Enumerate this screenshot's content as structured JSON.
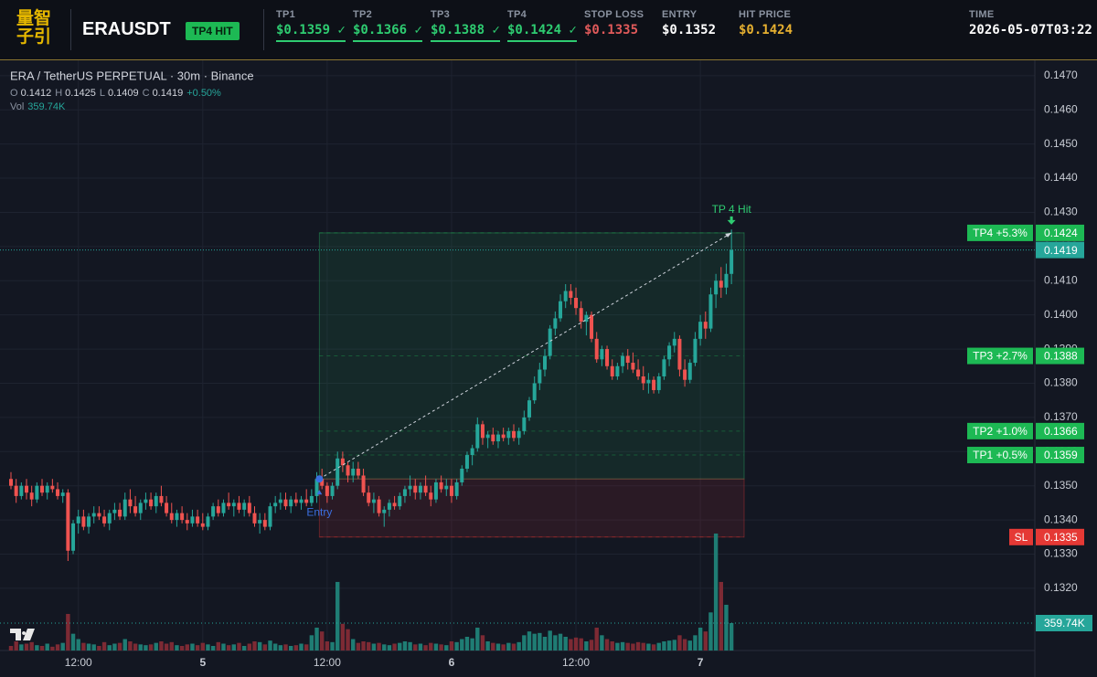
{
  "header": {
    "logo": [
      "量智",
      "子引"
    ],
    "symbol": "ERAUSDT",
    "status": "TP4 HIT",
    "fields": [
      {
        "label": "TP1",
        "value": "$0.1359 ✓",
        "color": "#2ecc71",
        "underline": true
      },
      {
        "label": "TP2",
        "value": "$0.1366 ✓",
        "color": "#2ecc71",
        "underline": true
      },
      {
        "label": "TP3",
        "value": "$0.1388 ✓",
        "color": "#2ecc71",
        "underline": true
      },
      {
        "label": "TP4",
        "value": "$0.1424 ✓",
        "color": "#2ecc71",
        "underline": true
      },
      {
        "label": "STOP LOSS",
        "value": "$0.1335",
        "color": "#e05a5a",
        "underline": false
      },
      {
        "label": "ENTRY",
        "value": "$0.1352",
        "color": "#ffffff",
        "underline": false
      },
      {
        "label": "HIT PRICE",
        "value": "$0.1424",
        "color": "#e6b030",
        "underline": false
      },
      {
        "label": "TIME",
        "value": "2026-05-07T03:22",
        "color": "#ffffff",
        "underline": false
      }
    ]
  },
  "chart_data": {
    "type": "candlestick",
    "title": "ERA / TetherUS PERPETUAL · 30m · Binance",
    "ohlc": [
      {
        "label": "O",
        "value": 0.1412
      },
      {
        "label": "H",
        "value": 0.1425
      },
      {
        "label": "L",
        "value": 0.1409
      },
      {
        "label": "C",
        "value": 0.1419
      }
    ],
    "change": "+0.50%",
    "volume_label": "Vol",
    "volume_value": "359.74K",
    "categories": [
      null,
      null,
      null,
      null,
      null,
      null,
      null,
      null,
      null,
      null,
      null,
      null,
      null,
      "12:00",
      null,
      null,
      null,
      null,
      null,
      null,
      null,
      null,
      null,
      null,
      null,
      null,
      null,
      null,
      null,
      null,
      null,
      null,
      null,
      null,
      null,
      null,
      null,
      "5",
      null,
      null,
      null,
      null,
      null,
      null,
      null,
      null,
      null,
      null,
      null,
      null,
      null,
      null,
      null,
      null,
      null,
      null,
      null,
      null,
      null,
      null,
      null,
      "12:00",
      null,
      null,
      null,
      null,
      null,
      null,
      null,
      null,
      null,
      null,
      null,
      null,
      null,
      null,
      null,
      null,
      null,
      null,
      null,
      null,
      null,
      null,
      null,
      "6",
      null,
      null,
      null,
      null,
      null,
      null,
      null,
      null,
      null,
      null,
      null,
      null,
      null,
      null,
      null,
      null,
      null,
      null,
      null,
      null,
      null,
      null,
      null,
      "12:00",
      null,
      null,
      null,
      null,
      null,
      null,
      null,
      null,
      null,
      null,
      null,
      null,
      null,
      null,
      null,
      null,
      null,
      null,
      null,
      null,
      null,
      null,
      null,
      "7",
      null,
      null,
      null,
      null,
      null,
      null
    ],
    "candles": [
      [
        0.1352,
        0.1354,
        0.1349,
        0.135,
        60
      ],
      [
        0.135,
        0.1352,
        0.1345,
        0.1347,
        120
      ],
      [
        0.1347,
        0.1351,
        0.1346,
        0.135,
        80
      ],
      [
        0.135,
        0.1352,
        0.1346,
        0.1348,
        90
      ],
      [
        0.1348,
        0.135,
        0.1344,
        0.1346,
        110
      ],
      [
        0.1346,
        0.1351,
        0.1345,
        0.135,
        70
      ],
      [
        0.135,
        0.1352,
        0.1347,
        0.1348,
        60
      ],
      [
        0.1348,
        0.1351,
        0.1346,
        0.135,
        90
      ],
      [
        0.135,
        0.1352,
        0.1348,
        0.1349,
        50
      ],
      [
        0.1349,
        0.1351,
        0.1346,
        0.1347,
        80
      ],
      [
        0.1347,
        0.1349,
        0.1345,
        0.1348,
        100
      ],
      [
        0.1348,
        0.1349,
        0.1328,
        0.1331,
        480
      ],
      [
        0.1331,
        0.134,
        0.133,
        0.1339,
        220
      ],
      [
        0.1339,
        0.1343,
        0.1336,
        0.1341,
        150
      ],
      [
        0.1341,
        0.1343,
        0.1337,
        0.1338,
        100
      ],
      [
        0.1338,
        0.1342,
        0.1336,
        0.1341,
        90
      ],
      [
        0.1341,
        0.1344,
        0.1339,
        0.1342,
        80
      ],
      [
        0.1342,
        0.1344,
        0.134,
        0.1341,
        60
      ],
      [
        0.1341,
        0.1343,
        0.1338,
        0.1339,
        110
      ],
      [
        0.1339,
        0.1343,
        0.1337,
        0.1342,
        70
      ],
      [
        0.1342,
        0.1345,
        0.134,
        0.1343,
        90
      ],
      [
        0.1343,
        0.1345,
        0.134,
        0.1341,
        100
      ],
      [
        0.1341,
        0.1348,
        0.134,
        0.1346,
        150
      ],
      [
        0.1346,
        0.1349,
        0.1342,
        0.1344,
        120
      ],
      [
        0.1344,
        0.1347,
        0.1341,
        0.1342,
        90
      ],
      [
        0.1342,
        0.1346,
        0.134,
        0.1345,
        80
      ],
      [
        0.1345,
        0.1348,
        0.1343,
        0.1346,
        70
      ],
      [
        0.1346,
        0.1348,
        0.1343,
        0.1344,
        80
      ],
      [
        0.1344,
        0.1348,
        0.1342,
        0.1347,
        100
      ],
      [
        0.1347,
        0.135,
        0.1344,
        0.1345,
        120
      ],
      [
        0.1345,
        0.1347,
        0.1341,
        0.1342,
        90
      ],
      [
        0.1342,
        0.1345,
        0.1339,
        0.134,
        110
      ],
      [
        0.134,
        0.1343,
        0.1338,
        0.1342,
        70
      ],
      [
        0.1342,
        0.1344,
        0.1339,
        0.134,
        60
      ],
      [
        0.134,
        0.1342,
        0.1337,
        0.1339,
        80
      ],
      [
        0.1339,
        0.1343,
        0.1338,
        0.1341,
        90
      ],
      [
        0.1341,
        0.1343,
        0.1338,
        0.1339,
        70
      ],
      [
        0.1339,
        0.1342,
        0.1337,
        0.1338,
        100
      ],
      [
        0.1338,
        0.1342,
        0.1337,
        0.1341,
        80
      ],
      [
        0.1341,
        0.1345,
        0.134,
        0.1344,
        60
      ],
      [
        0.1344,
        0.1346,
        0.1341,
        0.1342,
        110
      ],
      [
        0.1342,
        0.1346,
        0.1341,
        0.1345,
        90
      ],
      [
        0.1345,
        0.1348,
        0.1343,
        0.1344,
        70
      ],
      [
        0.1344,
        0.1346,
        0.1341,
        0.1345,
        80
      ],
      [
        0.1345,
        0.1347,
        0.1342,
        0.1343,
        100
      ],
      [
        0.1343,
        0.1346,
        0.1341,
        0.1345,
        60
      ],
      [
        0.1345,
        0.1347,
        0.1341,
        0.1342,
        90
      ],
      [
        0.1342,
        0.1344,
        0.1338,
        0.1339,
        120
      ],
      [
        0.1339,
        0.1342,
        0.1336,
        0.134,
        110
      ],
      [
        0.134,
        0.1342,
        0.1337,
        0.1338,
        80
      ],
      [
        0.1338,
        0.1345,
        0.1337,
        0.1344,
        130
      ],
      [
        0.1344,
        0.1347,
        0.1342,
        0.1345,
        90
      ],
      [
        0.1345,
        0.1348,
        0.1343,
        0.1346,
        70
      ],
      [
        0.1346,
        0.1348,
        0.1343,
        0.1344,
        80
      ],
      [
        0.1344,
        0.1347,
        0.1342,
        0.1346,
        60
      ],
      [
        0.1346,
        0.1348,
        0.1344,
        0.1345,
        70
      ],
      [
        0.1345,
        0.1347,
        0.1343,
        0.1346,
        90
      ],
      [
        0.1346,
        0.1349,
        0.1344,
        0.1345,
        80
      ],
      [
        0.1345,
        0.1349,
        0.1344,
        0.1347,
        200
      ],
      [
        0.1347,
        0.1354,
        0.1345,
        0.1352,
        300
      ],
      [
        0.1352,
        0.1355,
        0.1349,
        0.135,
        250
      ],
      [
        0.135,
        0.1351,
        0.1345,
        0.1347,
        120
      ],
      [
        0.1347,
        0.1351,
        0.1346,
        0.135,
        110
      ],
      [
        0.135,
        0.136,
        0.1349,
        0.1358,
        900
      ],
      [
        0.1358,
        0.136,
        0.1354,
        0.1356,
        350
      ],
      [
        0.1356,
        0.1357,
        0.1351,
        0.1353,
        280
      ],
      [
        0.1353,
        0.1357,
        0.1351,
        0.1355,
        150
      ],
      [
        0.1355,
        0.1357,
        0.1352,
        0.1353,
        100
      ],
      [
        0.1353,
        0.1355,
        0.1347,
        0.1348,
        120
      ],
      [
        0.1348,
        0.135,
        0.1344,
        0.1345,
        110
      ],
      [
        0.1345,
        0.1348,
        0.1342,
        0.1346,
        90
      ],
      [
        0.1346,
        0.1347,
        0.1341,
        0.1342,
        100
      ],
      [
        0.1342,
        0.1344,
        0.1338,
        0.1343,
        80
      ],
      [
        0.1343,
        0.1346,
        0.1341,
        0.1345,
        70
      ],
      [
        0.1345,
        0.1347,
        0.1343,
        0.1344,
        90
      ],
      [
        0.1344,
        0.1348,
        0.1343,
        0.1347,
        100
      ],
      [
        0.1347,
        0.135,
        0.1345,
        0.1349,
        120
      ],
      [
        0.1349,
        0.1353,
        0.1347,
        0.135,
        110
      ],
      [
        0.135,
        0.1352,
        0.1346,
        0.1348,
        80
      ],
      [
        0.1348,
        0.1351,
        0.1346,
        0.135,
        90
      ],
      [
        0.135,
        0.1353,
        0.1347,
        0.1348,
        70
      ],
      [
        0.1348,
        0.135,
        0.1344,
        0.1346,
        100
      ],
      [
        0.1346,
        0.1352,
        0.1345,
        0.1351,
        90
      ],
      [
        0.1351,
        0.1353,
        0.1348,
        0.1349,
        80
      ],
      [
        0.1349,
        0.1352,
        0.1347,
        0.135,
        70
      ],
      [
        0.135,
        0.1352,
        0.1345,
        0.1347,
        120
      ],
      [
        0.1347,
        0.1352,
        0.1346,
        0.1351,
        110
      ],
      [
        0.1351,
        0.1356,
        0.135,
        0.1355,
        150
      ],
      [
        0.1355,
        0.136,
        0.1354,
        0.1359,
        180
      ],
      [
        0.1359,
        0.1362,
        0.1356,
        0.1361,
        160
      ],
      [
        0.1361,
        0.137,
        0.136,
        0.1368,
        300
      ],
      [
        0.1368,
        0.1369,
        0.1362,
        0.1364,
        200
      ],
      [
        0.1364,
        0.1366,
        0.1361,
        0.1365,
        120
      ],
      [
        0.1365,
        0.1367,
        0.1362,
        0.1363,
        100
      ],
      [
        0.1363,
        0.1366,
        0.1361,
        0.1365,
        90
      ],
      [
        0.1365,
        0.1367,
        0.1363,
        0.1364,
        80
      ],
      [
        0.1364,
        0.1367,
        0.1362,
        0.1366,
        100
      ],
      [
        0.1366,
        0.1368,
        0.1363,
        0.1364,
        90
      ],
      [
        0.1364,
        0.1367,
        0.1362,
        0.1366,
        110
      ],
      [
        0.1366,
        0.1372,
        0.1365,
        0.137,
        200
      ],
      [
        0.137,
        0.1376,
        0.1369,
        0.1375,
        250
      ],
      [
        0.1375,
        0.1382,
        0.1374,
        0.138,
        220
      ],
      [
        0.138,
        0.1386,
        0.1378,
        0.1384,
        230
      ],
      [
        0.1384,
        0.139,
        0.1382,
        0.1388,
        180
      ],
      [
        0.1388,
        0.1397,
        0.1387,
        0.1396,
        260
      ],
      [
        0.1396,
        0.1401,
        0.1394,
        0.1399,
        200
      ],
      [
        0.1399,
        0.1406,
        0.1398,
        0.1404,
        220
      ],
      [
        0.1404,
        0.1409,
        0.1402,
        0.1407,
        180
      ],
      [
        0.1407,
        0.1409,
        0.1403,
        0.1405,
        150
      ],
      [
        0.1405,
        0.1408,
        0.14,
        0.1402,
        170
      ],
      [
        0.1402,
        0.1404,
        0.1396,
        0.1398,
        160
      ],
      [
        0.1398,
        0.1401,
        0.1394,
        0.14,
        120
      ],
      [
        0.14,
        0.1401,
        0.1392,
        0.1393,
        140
      ],
      [
        0.1393,
        0.1395,
        0.1386,
        0.1387,
        300
      ],
      [
        0.1387,
        0.1391,
        0.1385,
        0.139,
        200
      ],
      [
        0.139,
        0.1391,
        0.1384,
        0.1385,
        150
      ],
      [
        0.1385,
        0.1387,
        0.1381,
        0.1382,
        120
      ],
      [
        0.1382,
        0.1386,
        0.1381,
        0.1385,
        100
      ],
      [
        0.1385,
        0.1389,
        0.1383,
        0.1388,
        110
      ],
      [
        0.1388,
        0.139,
        0.1384,
        0.1386,
        100
      ],
      [
        0.1386,
        0.1389,
        0.1383,
        0.1384,
        90
      ],
      [
        0.1384,
        0.1387,
        0.1381,
        0.1382,
        110
      ],
      [
        0.1382,
        0.1385,
        0.1378,
        0.138,
        100
      ],
      [
        0.138,
        0.1383,
        0.1377,
        0.1381,
        90
      ],
      [
        0.1381,
        0.1382,
        0.1377,
        0.1378,
        80
      ],
      [
        0.1378,
        0.1383,
        0.1377,
        0.1382,
        100
      ],
      [
        0.1382,
        0.1388,
        0.1381,
        0.1387,
        120
      ],
      [
        0.1387,
        0.1392,
        0.1385,
        0.1391,
        130
      ],
      [
        0.1391,
        0.1395,
        0.1389,
        0.1393,
        140
      ],
      [
        0.1393,
        0.1394,
        0.1382,
        0.1384,
        200
      ],
      [
        0.1384,
        0.1387,
        0.1379,
        0.1381,
        150
      ],
      [
        0.1381,
        0.1387,
        0.138,
        0.1386,
        130
      ],
      [
        0.1386,
        0.1395,
        0.1385,
        0.1393,
        200
      ],
      [
        0.1393,
        0.14,
        0.1391,
        0.1398,
        300
      ],
      [
        0.1398,
        0.1401,
        0.1393,
        0.1396,
        250
      ],
      [
        0.1396,
        0.1408,
        0.1395,
        0.1406,
        500
      ],
      [
        0.1406,
        0.1412,
        0.1402,
        0.141,
        1535
      ],
      [
        0.141,
        0.1414,
        0.1405,
        0.1408,
        900
      ],
      [
        0.1408,
        0.1415,
        0.1406,
        0.1412,
        600
      ],
      [
        0.1412,
        0.1425,
        0.1409,
        0.1419,
        359.74
      ]
    ],
    "ylim": [
      0.13018,
      0.14745
    ],
    "yticks": [
      {
        "value": 0.132,
        "label": "0.1320"
      },
      {
        "value": 0.133,
        "label": "0.1330"
      },
      {
        "value": 0.134,
        "label": "0.1340"
      },
      {
        "value": 0.135,
        "label": "0.1350"
      },
      {
        "value": 0.136,
        "label": "0.1360"
      },
      {
        "value": 0.137,
        "label": "0.1370"
      },
      {
        "value": 0.138,
        "label": "0.1380"
      },
      {
        "value": 0.139,
        "label": "0.1390"
      },
      {
        "value": 0.14,
        "label": "0.1400"
      },
      {
        "value": 0.141,
        "label": "0.1410"
      },
      {
        "value": 0.142,
        "label": "0.1420"
      },
      {
        "value": 0.143,
        "label": "0.1430"
      },
      {
        "value": 0.144,
        "label": "0.1440"
      },
      {
        "value": 0.145,
        "label": "0.1450"
      },
      {
        "value": 0.146,
        "label": "0.1460"
      },
      {
        "value": 0.147,
        "label": "0.1470"
      }
    ],
    "levels": [
      {
        "name": "TP4 +5.3%",
        "value": 0.1424,
        "color": "#1db954"
      },
      {
        "name": "TP3 +2.7%",
        "value": 0.1388,
        "color": "#1db954"
      },
      {
        "name": "TP2 +1.0%",
        "value": 0.1366,
        "color": "#1db954"
      },
      {
        "name": "TP1 +0.5%",
        "value": 0.1359,
        "color": "#1db954"
      },
      {
        "name": "SL",
        "value": 0.1335,
        "color": "#e53935"
      }
    ],
    "last_price": 0.1419,
    "entry_label": "Entry",
    "entry": 0.1352,
    "hit_label": "TP 4 Hit",
    "hit": 0.1424,
    "colors": {
      "up": "#26a69a",
      "down": "#ef5350",
      "up_volume": "#1f7d74",
      "down_volume": "#7d2a34",
      "entry": "#3b6fe0",
      "hit": "#2ecc71"
    },
    "grid": true
  }
}
